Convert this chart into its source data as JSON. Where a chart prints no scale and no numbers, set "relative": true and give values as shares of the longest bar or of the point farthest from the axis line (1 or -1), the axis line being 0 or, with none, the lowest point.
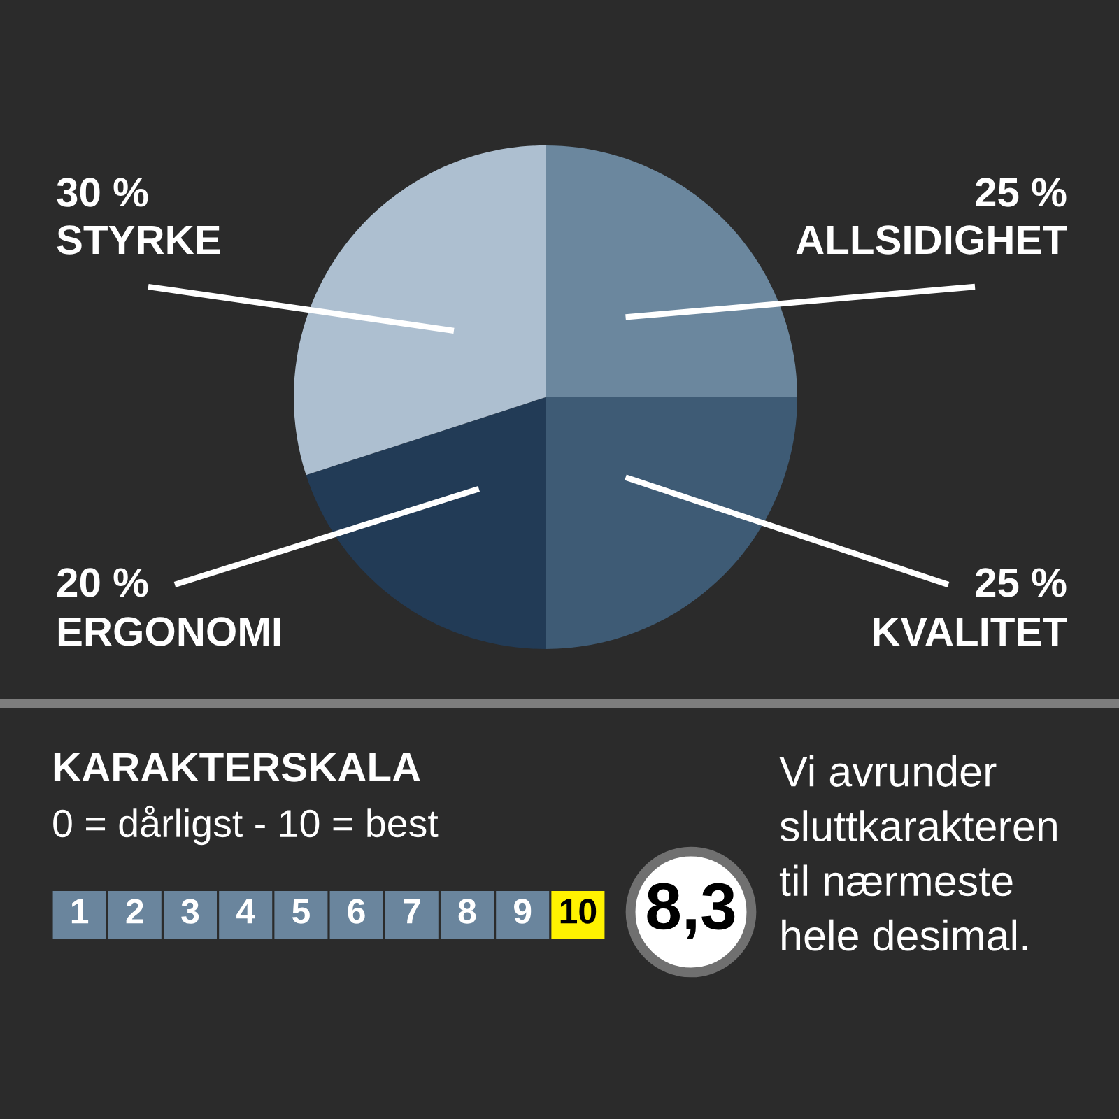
{
  "chart_data": [
    {
      "type": "pie",
      "categories": [
        "ALLSIDIGHET",
        "KVALITET",
        "ERGONOMI",
        "STYRKE"
      ],
      "values": [
        25,
        25,
        20,
        30
      ],
      "colors": [
        "#6b879e",
        "#3e5b75",
        "#223b56",
        "#adbfd0"
      ],
      "value_labels": [
        "25 %",
        "25 %",
        "20 %",
        "30 %"
      ]
    },
    {
      "type": "bar",
      "relative": true,
      "title": "KARAKTERSKALA",
      "subtitle": "0 = dårligst - 10 = best",
      "categories": [
        "1",
        "2",
        "3",
        "4",
        "5",
        "6",
        "7",
        "8",
        "9",
        "10"
      ],
      "values": [
        1,
        1,
        1,
        1,
        1,
        1,
        1,
        1,
        1,
        1
      ],
      "colors": [
        "#6a859d",
        "#6a859d",
        "#6a859d",
        "#6a859d",
        "#6a859d",
        "#6a859d",
        "#6a859d",
        "#6a859d",
        "#6a859d",
        "#fff200"
      ],
      "annotations": [
        "8,3",
        "Vi avrunder\nsluttkarakteren\ntil nærmeste\nhele desimal."
      ]
    }
  ]
}
